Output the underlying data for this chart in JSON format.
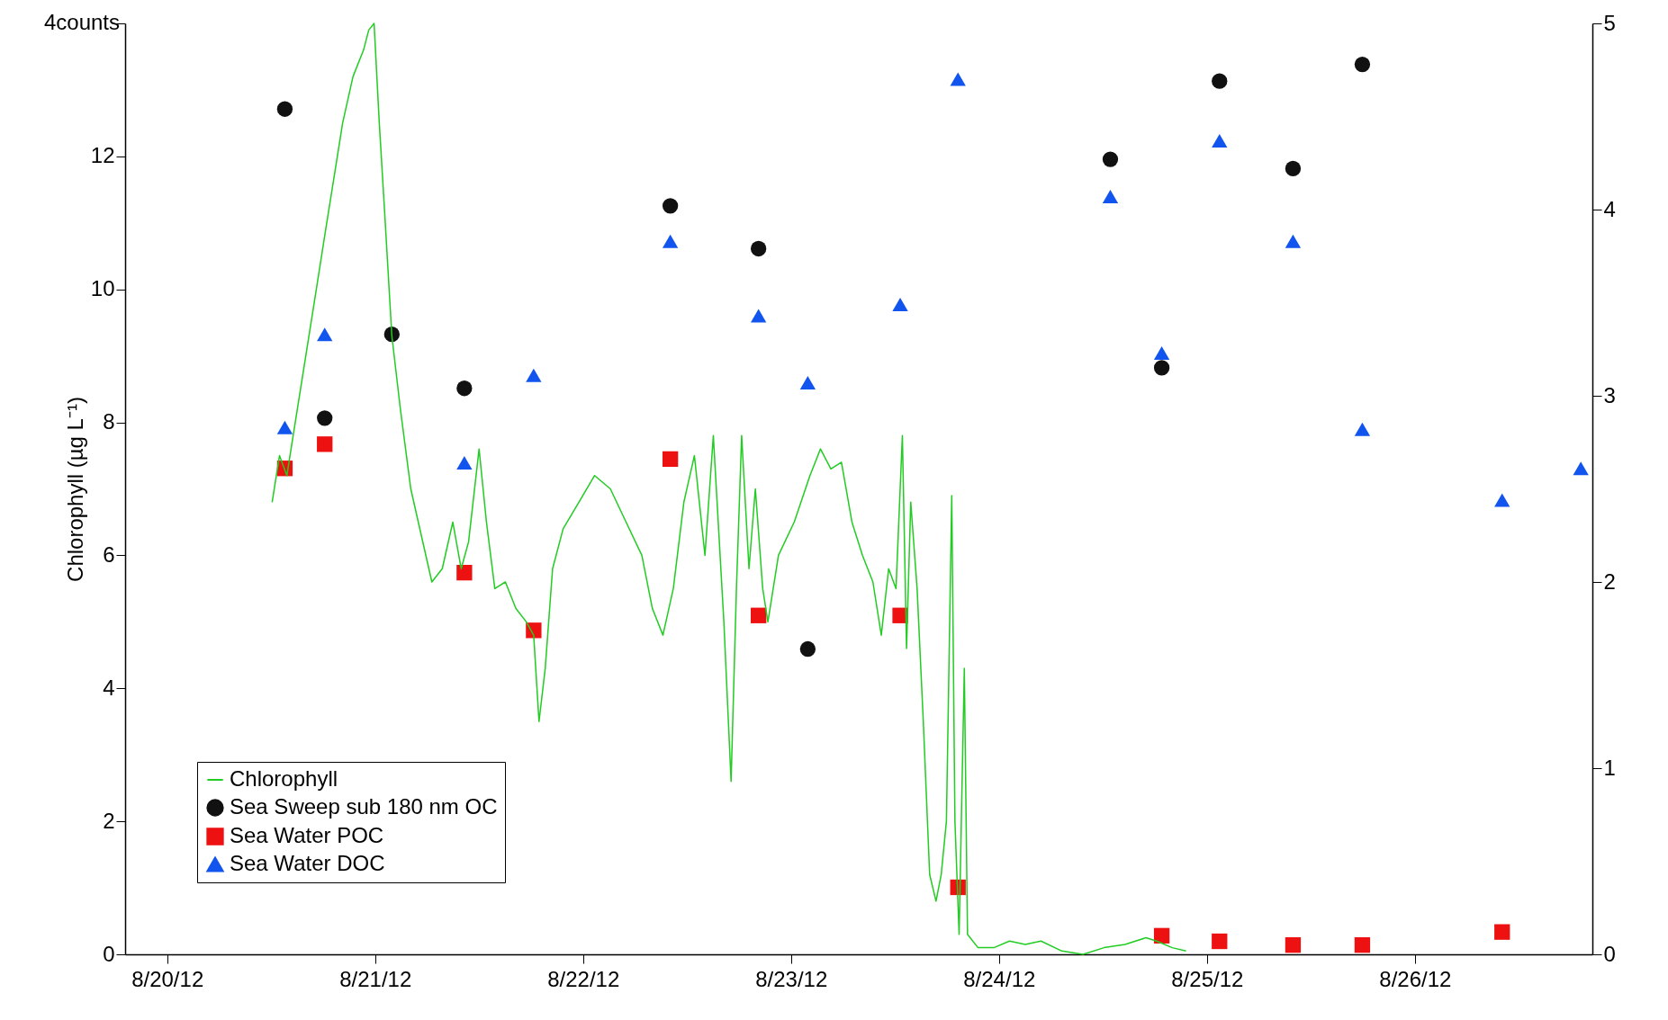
{
  "chart_data": {
    "type": "line",
    "ylabel": "Chlorophyll (µg L⁻¹)",
    "xlim": [
      "--08-19T19:09",
      "--08-26T20:29"
    ],
    "xticks": [
      {
        "value": "--08-20",
        "label": "8/20/12"
      },
      {
        "value": "--08-21",
        "label": "8/21/12"
      },
      {
        "value": "--08-22",
        "label": "8/22/12"
      },
      {
        "value": "--08-23",
        "label": "8/23/12"
      },
      {
        "value": "--08-24",
        "label": "8/24/12"
      },
      {
        "value": "--08-25",
        "label": "8/25/12"
      },
      {
        "value": "--08-26",
        "label": "8/26/12"
      }
    ],
    "ylim": [
      0,
      14
    ],
    "yticks": [
      0,
      2,
      4,
      6,
      8,
      10,
      12,
      {
        "value": 14,
        "label": null
      }
    ],
    "annotations": [
      "4counts"
    ],
    "y2lim": [
      0,
      5
    ],
    "y2ticks": [
      0,
      1,
      2,
      3,
      4,
      5
    ],
    "grid": false,
    "legend": "bottom left",
    "series": [
      {
        "name": "Chlorophyll",
        "type": "line",
        "color": "#22cc22",
        "line_style": "solid",
        "marker": "none",
        "x": [
          "--08-20T12:07",
          "--08-20T12:58",
          "--08-20T13:49",
          "--08-20T14:47",
          "--08-20T16:00",
          "--08-20T17:13",
          "--08-20T18:25",
          "--08-20T19:24",
          "--08-20T20:15",
          "--08-20T21:27",
          "--08-20T22:40",
          "--08-20T23:16",
          "--08-20T23:53",
          "--08-21T00:29",
          "--08-21T01:05",
          "--08-21T01:56",
          "--08-21T02:55",
          "--08-21T04:07",
          "--08-21T05:20",
          "--08-21T06:33",
          "--08-21T07:45",
          "--08-21T08:58",
          "--08-21T09:56",
          "--08-21T10:47",
          "--08-21T12:00",
          "--08-21T12:51",
          "--08-21T13:49",
          "--08-21T15:02",
          "--08-21T16:15",
          "--08-21T17:27",
          "--08-21T18:18",
          "--08-21T18:55",
          "--08-21T19:38",
          "--08-21T20:29",
          "--08-21T21:42",
          "--08-21T23:31",
          "--08-22T01:20",
          "--08-22T03:09",
          "--08-22T04:58",
          "--08-22T06:47",
          "--08-22T08:00",
          "--08-22T09:13",
          "--08-22T10:25",
          "--08-22T11:38",
          "--08-22T12:51",
          "--08-22T14:04",
          "--08-22T15:02",
          "--08-22T16:15",
          "--08-22T17:05",
          "--08-22T17:42",
          "--08-22T18:18",
          "--08-22T19:09",
          "--08-22T19:53",
          "--08-22T20:44",
          "--08-22T21:20",
          "--08-22T22:33",
          "--08-23T00:22",
          "--08-23T02:11",
          "--08-23T03:24",
          "--08-23T04:36",
          "--08-23T05:49",
          "--08-23T07:02",
          "--08-23T08:15",
          "--08-23T09:27",
          "--08-23T10:25",
          "--08-23T11:16",
          "--08-23T12:07",
          "--08-23T12:51",
          "--08-23T13:20",
          "--08-23T13:49",
          "--08-23T14:33",
          "--08-23T15:16",
          "--08-23T16:00",
          "--08-23T16:44",
          "--08-23T17:20",
          "--08-23T17:56",
          "--08-23T18:33",
          "--08-23T18:55",
          "--08-23T19:24",
          "--08-23T20:00",
          "--08-23T20:22",
          "--08-23T21:35",
          "--08-23T23:24",
          "--08-24T01:13",
          "--08-24T03:02",
          "--08-24T04:51",
          "--08-24T07:16",
          "--08-24T09:42",
          "--08-24T12:07",
          "--08-24T14:33",
          "--08-24T16:58",
          "--08-24T18:11",
          "--08-24T20:00",
          "--08-24T21:35"
        ],
        "values": [
          6.8,
          7.5,
          7.2,
          8.0,
          9.0,
          10.0,
          11.0,
          11.8,
          12.5,
          13.2,
          13.6,
          13.9,
          14.0,
          12.5,
          11.2,
          9.3,
          8.2,
          7.0,
          6.3,
          5.6,
          5.8,
          6.5,
          5.8,
          6.2,
          7.6,
          6.5,
          5.5,
          5.6,
          5.2,
          5.0,
          4.8,
          3.5,
          4.3,
          5.8,
          6.4,
          6.8,
          7.2,
          7.0,
          6.5,
          6.0,
          5.2,
          4.8,
          5.5,
          6.8,
          7.5,
          6.0,
          7.8,
          5.0,
          2.6,
          5.5,
          7.8,
          5.8,
          7.0,
          5.5,
          5.0,
          6.0,
          6.5,
          7.2,
          7.6,
          7.3,
          7.4,
          6.5,
          6.0,
          5.6,
          4.8,
          5.8,
          5.5,
          7.8,
          4.6,
          6.8,
          5.5,
          3.5,
          1.2,
          0.8,
          1.2,
          2.0,
          6.9,
          2.0,
          0.3,
          4.3,
          0.3,
          0.1,
          0.1,
          0.2,
          0.15,
          0.2,
          0.05,
          0.0,
          0.1,
          0.15,
          0.25,
          0.2,
          0.1,
          0.05
        ]
      },
      {
        "name": "Sea Sweep sub 180 nm OC",
        "type": "scatter",
        "axis": "y2",
        "color": "#111111",
        "marker": "circle",
        "x": [
          "--08-20T13:35",
          "--08-20T18:11",
          "--08-21T01:56",
          "--08-21T10:18",
          "--08-22T10:04",
          "--08-22T20:15",
          "--08-23T01:56",
          "--08-24T12:51",
          "--08-24T18:47",
          "--08-25T01:27",
          "--08-25T09:56",
          "--08-25T17:56"
        ],
        "values": [
          4.54,
          2.88,
          3.33,
          3.04,
          4.02,
          3.79,
          1.64,
          4.27,
          3.15,
          4.69,
          4.22,
          4.78
        ]
      },
      {
        "name": "Sea Water POC",
        "type": "scatter",
        "axis": "y2",
        "color": "#ee1111",
        "marker": "square",
        "x": [
          "--08-20T13:35",
          "--08-20T18:11",
          "--08-21T10:18",
          "--08-21T18:18",
          "--08-22T10:04",
          "--08-22T20:15",
          "--08-23T12:36",
          "--08-23T19:16",
          "--08-24T18:47",
          "--08-25T01:27",
          "--08-25T09:56",
          "--08-25T17:56",
          "--08-26T10:04"
        ],
        "values": [
          2.61,
          2.74,
          2.05,
          1.74,
          2.66,
          1.82,
          1.82,
          0.36,
          0.1,
          0.07,
          0.05,
          0.05,
          0.12
        ]
      },
      {
        "name": "Sea Water DOC",
        "type": "scatter",
        "axis": "y2",
        "color": "#1155ee",
        "marker": "triangle",
        "x": [
          "--08-20T13:35",
          "--08-20T18:11",
          "--08-21T10:18",
          "--08-21T18:18",
          "--08-22T10:04",
          "--08-22T20:15",
          "--08-23T01:56",
          "--08-23T12:36",
          "--08-23T19:16",
          "--08-24T12:51",
          "--08-24T18:47",
          "--08-25T01:27",
          "--08-25T09:56",
          "--08-25T17:56",
          "--08-26T10:04",
          "--08-26T19:09"
        ],
        "values": [
          2.83,
          3.33,
          2.64,
          3.11,
          3.83,
          3.43,
          3.07,
          3.49,
          4.7,
          4.07,
          3.23,
          4.37,
          3.83,
          2.82,
          2.44,
          2.61
        ]
      }
    ]
  }
}
